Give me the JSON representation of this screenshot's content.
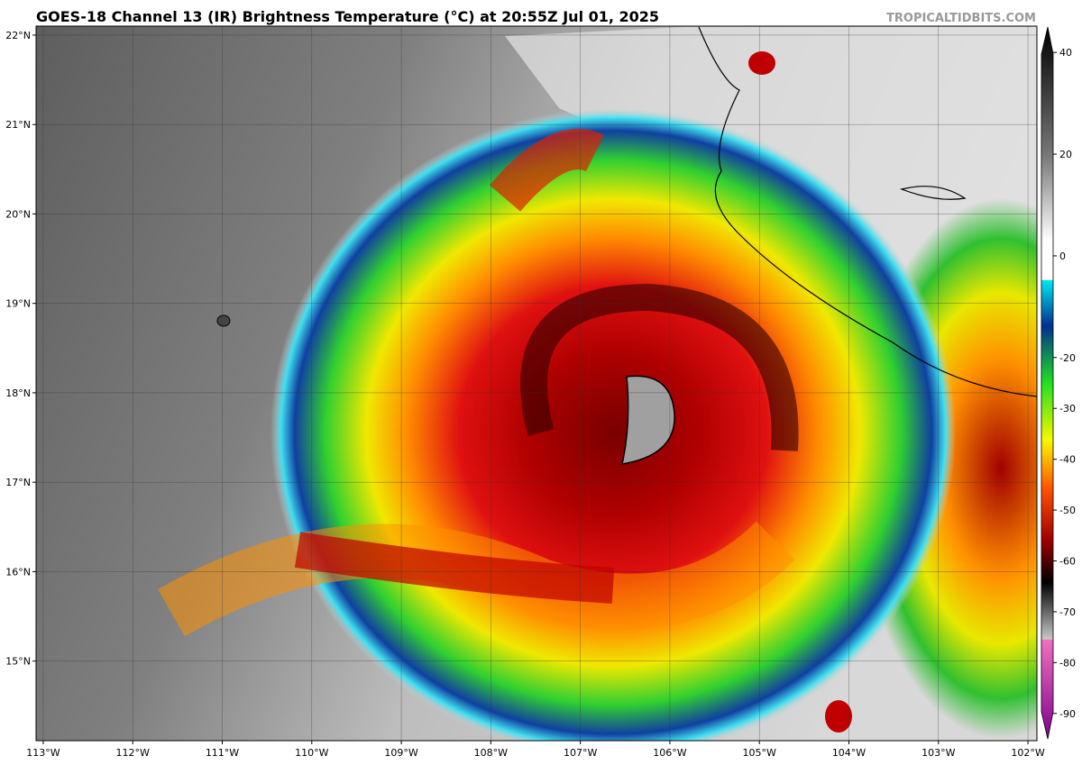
{
  "map": {
    "title": "GOES-18 Channel 13 (IR) Brightness Temperature (°C) at 20:55Z Jul 01, 2025",
    "credit": "TROPICALTIDBITS.COM",
    "lonlim": [
      -113.08,
      -101.9
    ],
    "latlim": [
      14.11,
      22.1
    ],
    "lonticks": [
      {
        "value": -113,
        "label": "113°W"
      },
      {
        "value": -112,
        "label": "112°W"
      },
      {
        "value": -111,
        "label": "111°W"
      },
      {
        "value": -110,
        "label": "110°W"
      },
      {
        "value": -109,
        "label": "109°W"
      },
      {
        "value": -108,
        "label": "108°W"
      },
      {
        "value": -107,
        "label": "107°W"
      },
      {
        "value": -106,
        "label": "106°W"
      },
      {
        "value": -105,
        "label": "105°W"
      },
      {
        "value": -104,
        "label": "104°W"
      },
      {
        "value": -103,
        "label": "103°W"
      },
      {
        "value": -102,
        "label": "102°W"
      }
    ],
    "latticks": [
      {
        "value": 22,
        "label": "22°N"
      },
      {
        "value": 21,
        "label": "21°N"
      },
      {
        "value": 20,
        "label": "20°N"
      },
      {
        "value": 19,
        "label": "19°N"
      },
      {
        "value": 18,
        "label": "18°N"
      },
      {
        "value": 17,
        "label": "17°N"
      },
      {
        "value": 16,
        "label": "16°N"
      },
      {
        "value": 15,
        "label": "15°N"
      }
    ]
  },
  "colorbar": {
    "range": [
      -95,
      45
    ],
    "ticks": [
      40,
      20,
      0,
      -20,
      -30,
      -40,
      -50,
      -60,
      -70,
      -80,
      -90
    ]
  }
}
